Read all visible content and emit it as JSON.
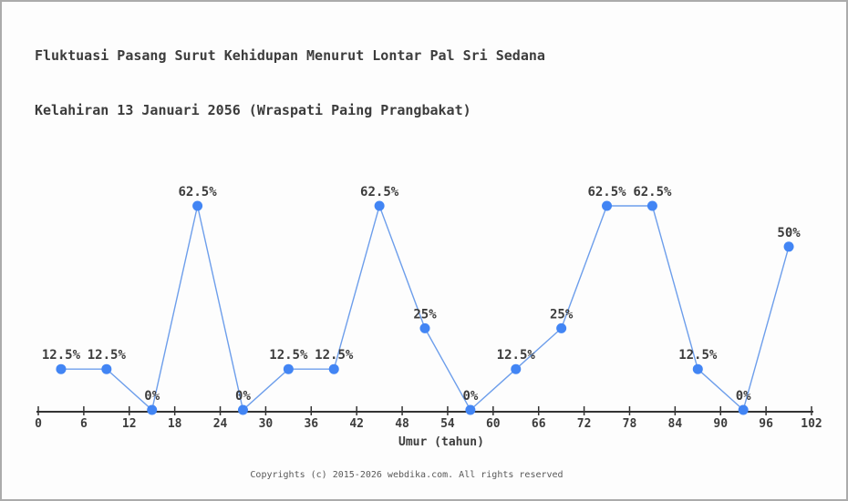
{
  "title": {
    "line1": "Fluktuasi Pasang Surut Kehidupan Menurut Lontar Pal Sri Sedana",
    "line2": "Kelahiran 13 Januari 2056 (Wraspati Paing Prangbakat)"
  },
  "footer": "Copyrights (c) 2015-2026 webdika.com. All rights reserved",
  "chart_data": {
    "type": "line",
    "title": "Fluktuasi Pasang Surut Kehidupan Menurut Lontar Pal Sri Sedana / Kelahiran 13 Januari 2056 (Wraspati Paing Prangbakat)",
    "xlabel": "Umur (tahun)",
    "ylabel": "",
    "x": [
      3,
      9,
      15,
      21,
      27,
      33,
      39,
      45,
      51,
      57,
      63,
      69,
      75,
      81,
      87,
      93,
      99
    ],
    "values": [
      12.5,
      12.5,
      0,
      62.5,
      0,
      12.5,
      12.5,
      62.5,
      25,
      0,
      12.5,
      25,
      62.5,
      62.5,
      12.5,
      0,
      50
    ],
    "point_labels": [
      "12.5%",
      "12.5%",
      "0%",
      "62.5%",
      "0%",
      "12.5%",
      "12.5%",
      "62.5%",
      "25%",
      "0%",
      "12.5%",
      "25%",
      "62.5%",
      "62.5%",
      "12.5%",
      "0%",
      "50%"
    ],
    "x_ticks": [
      0,
      6,
      12,
      18,
      24,
      30,
      36,
      42,
      48,
      54,
      60,
      66,
      72,
      78,
      84,
      90,
      96,
      102
    ],
    "xlim": [
      0,
      102
    ],
    "ylim": [
      0,
      75
    ],
    "grid": false,
    "legend": null,
    "colors": {
      "line": "#6d9eeb",
      "marker": "#4285f4",
      "text": "#3c3c3c",
      "axis": "#333333",
      "footer": "#585858",
      "border": "#ababab",
      "background": "#fdfdfd"
    }
  }
}
